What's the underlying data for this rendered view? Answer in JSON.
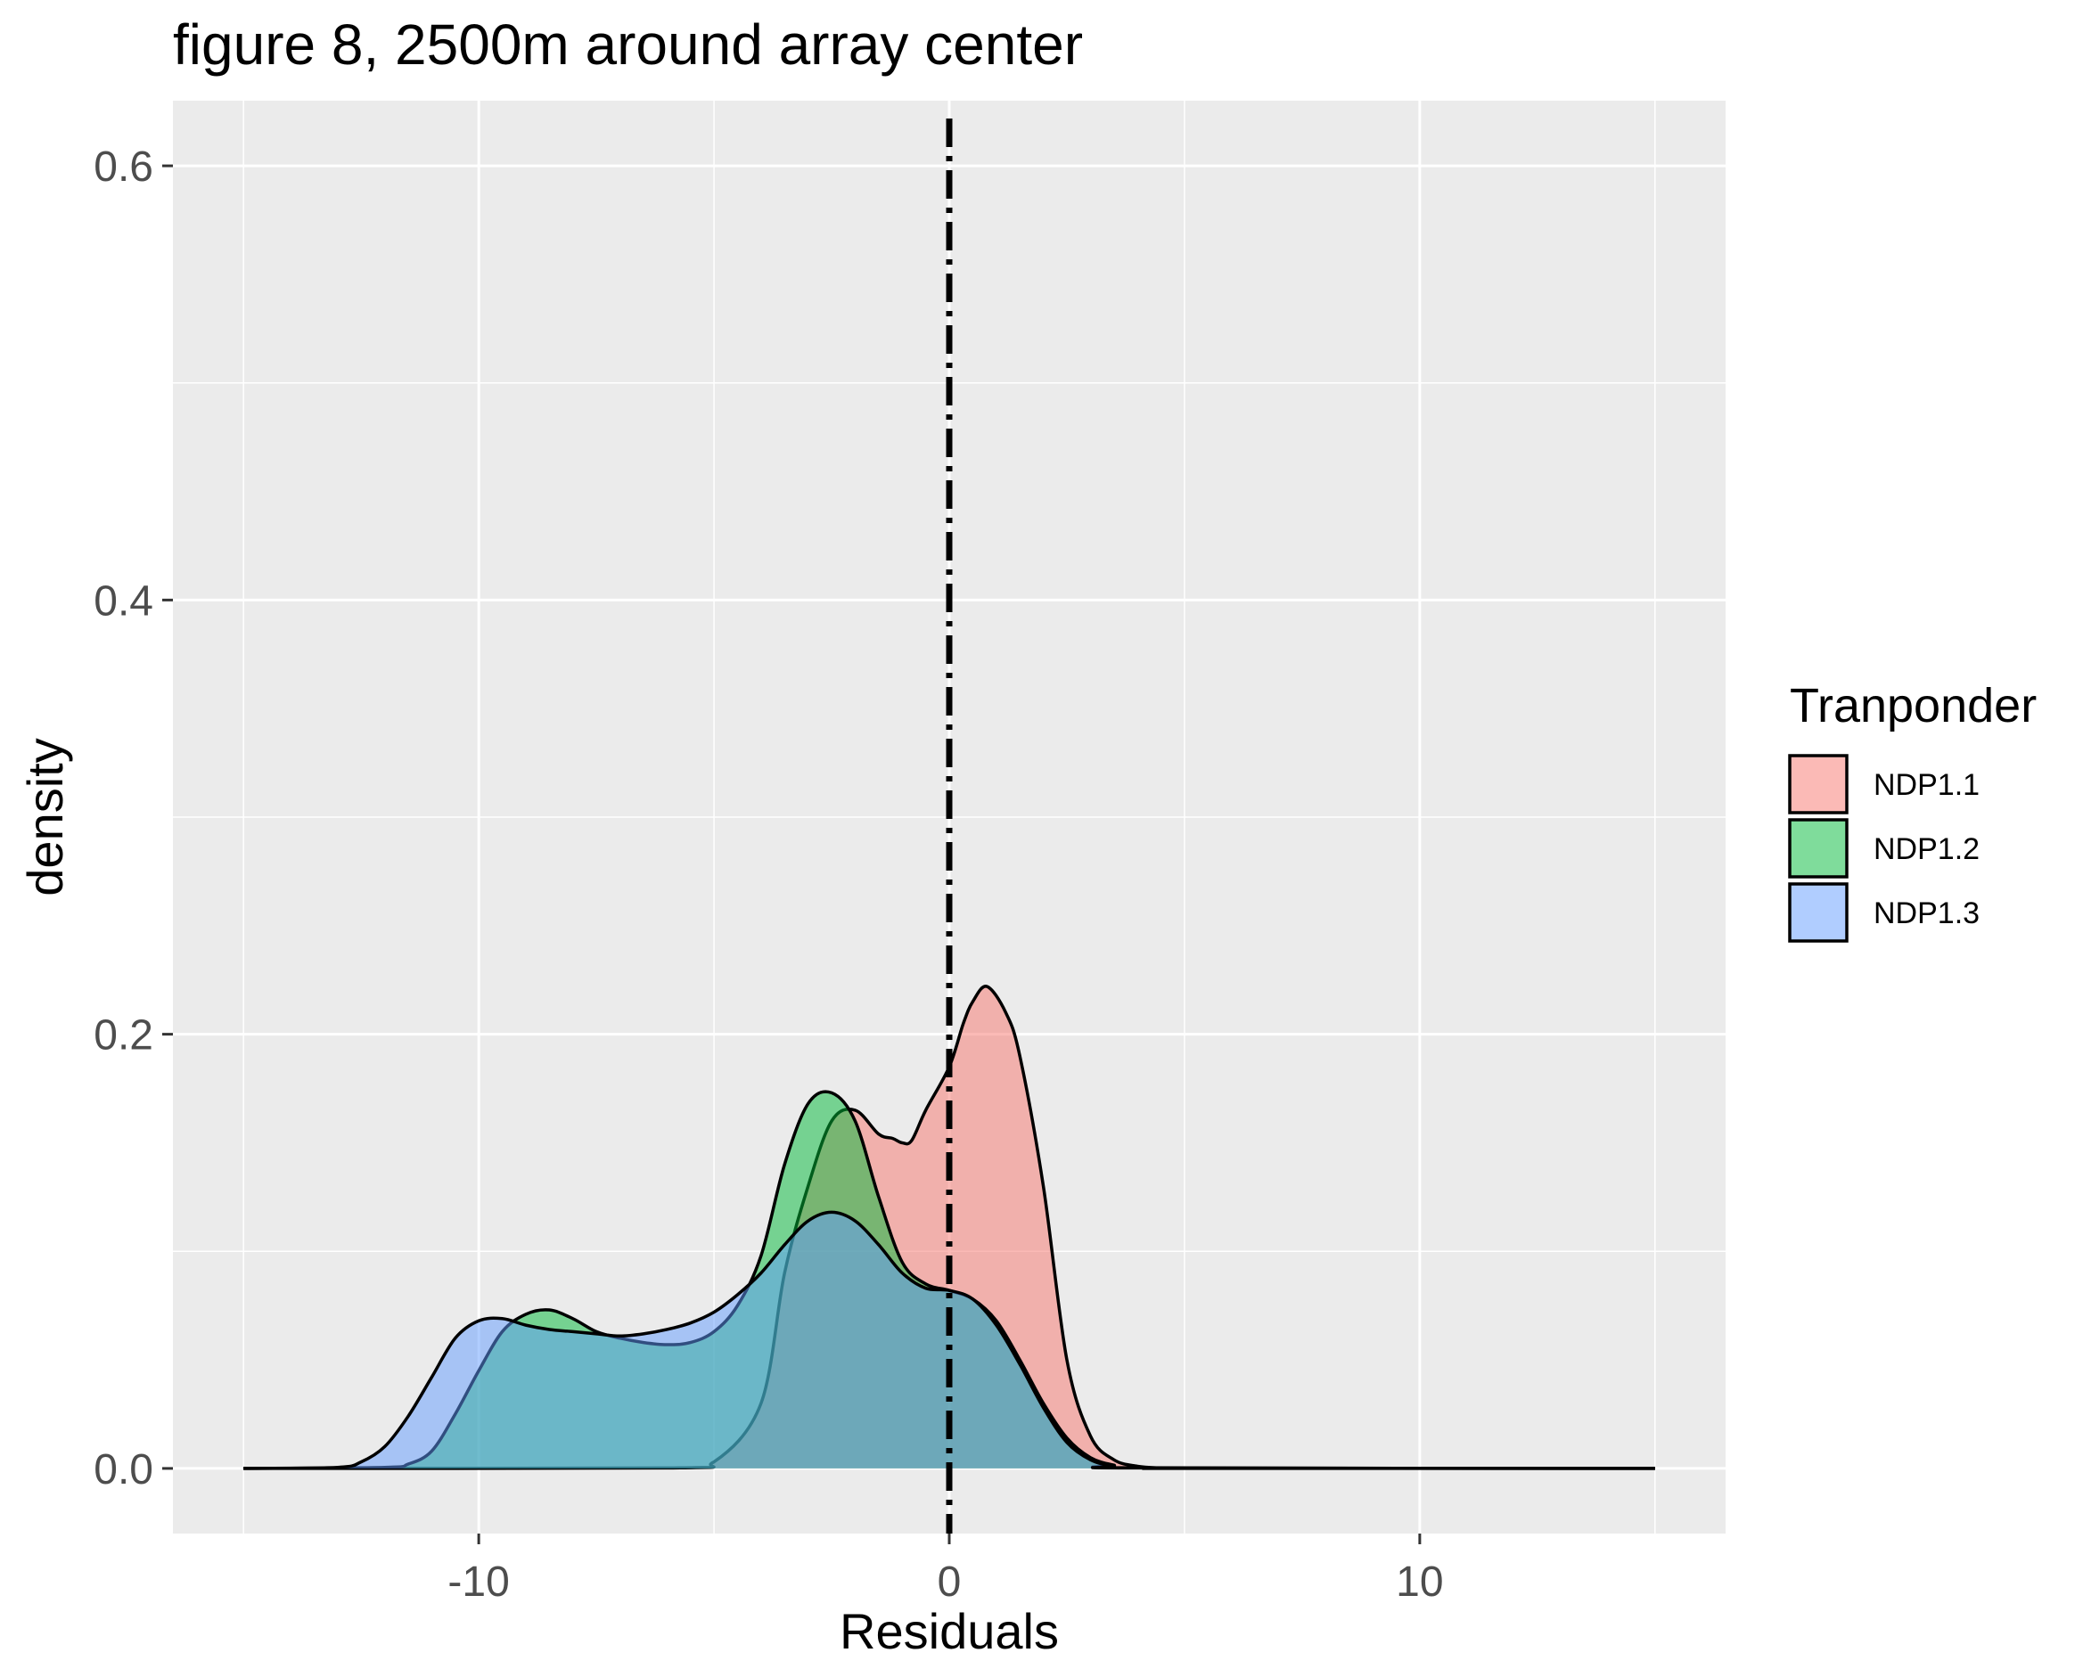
{
  "chart_data": {
    "type": "area",
    "title": "figure 8, 2500m around array center",
    "xlabel": "Residuals",
    "ylabel": "density",
    "xlim": [
      -16.5,
      16.5
    ],
    "ylim": [
      -0.03,
      0.63
    ],
    "x_ticks": [
      -10,
      0,
      10
    ],
    "x_tick_labels": [
      "-10",
      "0",
      "10"
    ],
    "y_ticks": [
      0.0,
      0.2,
      0.4,
      0.6
    ],
    "y_tick_labels": [
      "0.0",
      "0.2",
      "0.4",
      "0.6"
    ],
    "grid": true,
    "legend": {
      "title": "Tranponder",
      "position": "right",
      "entries": [
        "NDP1.1",
        "NDP1.2",
        "NDP1.3"
      ]
    },
    "reference_line": {
      "x": 0,
      "style": "dot-dash",
      "color": "#000000"
    },
    "series": [
      {
        "name": "NDP1.1",
        "fill": "#F8766D",
        "x": [
          -15,
          -6,
          -5,
          -4,
          -3.5,
          -3,
          -2.5,
          -2,
          -1.5,
          -1.2,
          -1,
          -0.8,
          -0.5,
          0,
          0.3,
          0.5,
          0.8,
          1.2,
          1.5,
          2,
          2.5,
          3,
          3.5,
          4,
          4.5,
          5,
          15
        ],
        "y": [
          0,
          0.0002,
          0.003,
          0.03,
          0.09,
          0.13,
          0.16,
          0.165,
          0.154,
          0.152,
          0.15,
          0.151,
          0.165,
          0.185,
          0.205,
          0.215,
          0.222,
          0.21,
          0.19,
          0.13,
          0.05,
          0.015,
          0.004,
          0.001,
          0.0002,
          0,
          0
        ]
      },
      {
        "name": "NDP1.2",
        "fill": "#00BA38",
        "x": [
          -15,
          -12,
          -11.5,
          -11,
          -10.5,
          -10,
          -9.5,
          -9,
          -8.5,
          -8,
          -7.5,
          -7,
          -6.5,
          -6,
          -5.5,
          -5,
          -4.5,
          -4,
          -3.5,
          -3,
          -2.5,
          -2,
          -1.5,
          -1,
          -0.5,
          0,
          0.5,
          1,
          1.5,
          2,
          2.5,
          3,
          3.5,
          4,
          15
        ],
        "y": [
          0,
          0.0005,
          0.002,
          0.008,
          0.025,
          0.045,
          0.063,
          0.071,
          0.073,
          0.069,
          0.063,
          0.06,
          0.058,
          0.057,
          0.058,
          0.063,
          0.075,
          0.098,
          0.14,
          0.168,
          0.173,
          0.16,
          0.125,
          0.095,
          0.085,
          0.082,
          0.078,
          0.068,
          0.05,
          0.03,
          0.014,
          0.005,
          0.0015,
          0.0003,
          0
        ]
      },
      {
        "name": "NDP1.3",
        "fill": "#619CFF",
        "x": [
          -15,
          -13,
          -12.5,
          -12,
          -11.5,
          -11,
          -10.5,
          -10,
          -9.5,
          -9,
          -8.5,
          -8,
          -7.5,
          -7,
          -6.5,
          -6,
          -5.5,
          -5,
          -4.5,
          -4,
          -3.5,
          -3,
          -2.5,
          -2,
          -1.5,
          -1,
          -0.5,
          0,
          0.5,
          1,
          1.5,
          2,
          2.5,
          3,
          3.5,
          4,
          15
        ],
        "y": [
          0,
          0.0005,
          0.003,
          0.01,
          0.024,
          0.042,
          0.06,
          0.068,
          0.069,
          0.066,
          0.064,
          0.063,
          0.062,
          0.061,
          0.062,
          0.064,
          0.067,
          0.072,
          0.08,
          0.09,
          0.103,
          0.114,
          0.118,
          0.114,
          0.103,
          0.09,
          0.083,
          0.082,
          0.078,
          0.066,
          0.048,
          0.028,
          0.012,
          0.004,
          0.001,
          0.0002,
          0
        ]
      }
    ]
  }
}
